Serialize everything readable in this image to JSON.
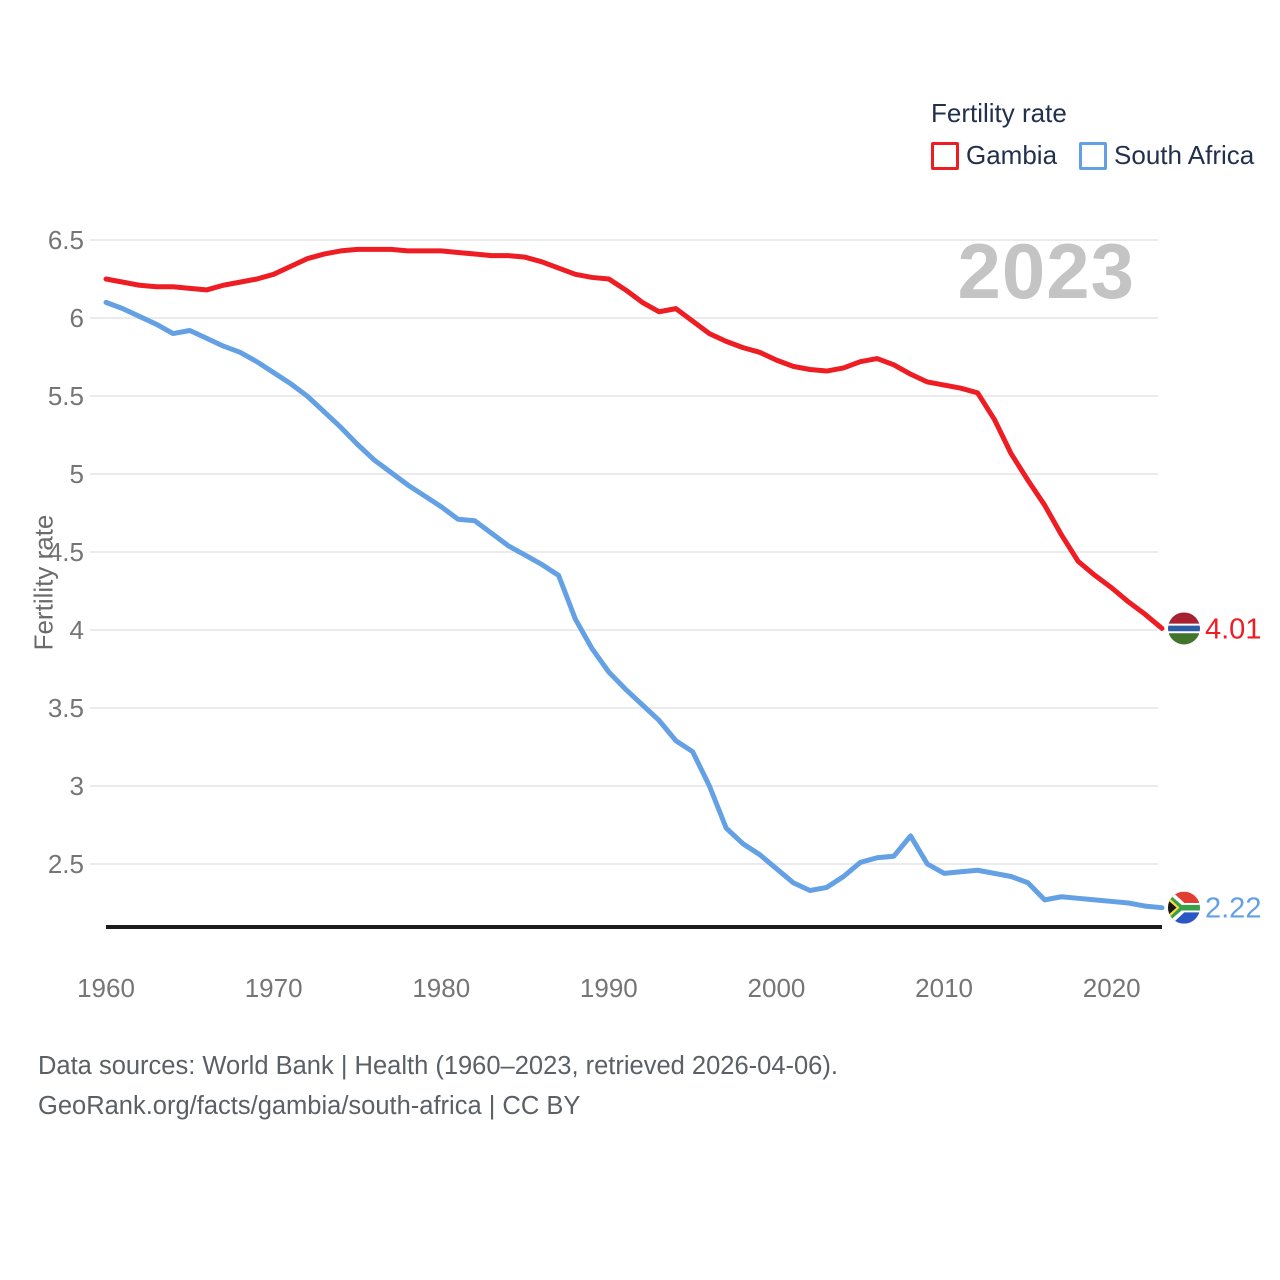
{
  "legend": {
    "title": "Fertility rate"
  },
  "footer": {
    "line1": "Data sources: World Bank | Health (1960–2023, retrieved 2026-04-06).",
    "line2": "GeoRank.org/facts/gambia/south-africa | CC BY"
  },
  "chart_data": {
    "type": "line",
    "title": "Fertility rate",
    "ylabel": "Fertility rate",
    "year_watermark": "2023",
    "xlim": [
      1960,
      2023
    ],
    "ylim": [
      2.5,
      6.5
    ],
    "grid": "horizontal-only",
    "legend_position": "top-right",
    "x": [
      1960,
      1961,
      1962,
      1963,
      1964,
      1965,
      1966,
      1967,
      1968,
      1969,
      1970,
      1971,
      1972,
      1973,
      1974,
      1975,
      1976,
      1977,
      1978,
      1979,
      1980,
      1981,
      1982,
      1983,
      1984,
      1985,
      1986,
      1987,
      1988,
      1989,
      1990,
      1991,
      1992,
      1993,
      1994,
      1995,
      1996,
      1997,
      1998,
      1999,
      2000,
      2001,
      2002,
      2003,
      2004,
      2005,
      2006,
      2007,
      2008,
      2009,
      2010,
      2011,
      2012,
      2013,
      2014,
      2015,
      2016,
      2017,
      2018,
      2019,
      2020,
      2021,
      2022,
      2023
    ],
    "series": [
      {
        "name": "Gambia",
        "color": "#ee1d23",
        "end_label": "4.01",
        "flag": "gambia",
        "values": [
          6.25,
          6.23,
          6.21,
          6.2,
          6.2,
          6.19,
          6.18,
          6.21,
          6.23,
          6.25,
          6.28,
          6.33,
          6.38,
          6.41,
          6.43,
          6.44,
          6.44,
          6.44,
          6.43,
          6.43,
          6.43,
          6.42,
          6.41,
          6.4,
          6.4,
          6.39,
          6.36,
          6.32,
          6.28,
          6.26,
          6.25,
          6.18,
          6.1,
          6.04,
          6.06,
          5.98,
          5.9,
          5.85,
          5.81,
          5.78,
          5.73,
          5.69,
          5.67,
          5.66,
          5.68,
          5.72,
          5.74,
          5.7,
          5.64,
          5.59,
          5.57,
          5.55,
          5.52,
          5.35,
          5.13,
          4.96,
          4.8,
          4.61,
          4.44,
          4.35,
          4.27,
          4.18,
          4.1,
          4.01
        ]
      },
      {
        "name": "South Africa",
        "color": "#64a0e4",
        "end_label": "2.22",
        "flag": "south-africa",
        "values": [
          6.1,
          6.06,
          6.01,
          5.96,
          5.9,
          5.92,
          5.87,
          5.82,
          5.78,
          5.72,
          5.65,
          5.58,
          5.5,
          5.4,
          5.3,
          5.19,
          5.09,
          5.01,
          4.93,
          4.86,
          4.79,
          4.71,
          4.7,
          4.62,
          4.54,
          4.48,
          4.42,
          4.35,
          4.07,
          3.88,
          3.73,
          3.62,
          3.52,
          3.42,
          3.29,
          3.22,
          3.0,
          2.73,
          2.63,
          2.56,
          2.47,
          2.38,
          2.33,
          2.35,
          2.42,
          2.51,
          2.54,
          2.55,
          2.68,
          2.5,
          2.44,
          2.45,
          2.46,
          2.44,
          2.42,
          2.38,
          2.27,
          2.29,
          2.28,
          2.27,
          2.26,
          2.25,
          2.23,
          2.22
        ]
      }
    ],
    "y_ticks": [
      {
        "value": 6.5,
        "label": "6.5"
      },
      {
        "value": 6.0,
        "label": "6"
      },
      {
        "value": 5.5,
        "label": "5.5"
      },
      {
        "value": 5.0,
        "label": "5"
      },
      {
        "value": 4.5,
        "label": "4.5"
      },
      {
        "value": 4.0,
        "label": "4"
      },
      {
        "value": 3.5,
        "label": "3.5"
      },
      {
        "value": 3.0,
        "label": "3"
      },
      {
        "value": 2.5,
        "label": "2.5"
      }
    ],
    "x_ticks": [
      {
        "value": 1960,
        "label": "1960"
      },
      {
        "value": 1970,
        "label": "1970"
      },
      {
        "value": 1980,
        "label": "1980"
      },
      {
        "value": 1990,
        "label": "1990"
      },
      {
        "value": 2000,
        "label": "2000"
      },
      {
        "value": 2010,
        "label": "2010"
      },
      {
        "value": 2020,
        "label": "2020"
      }
    ]
  }
}
